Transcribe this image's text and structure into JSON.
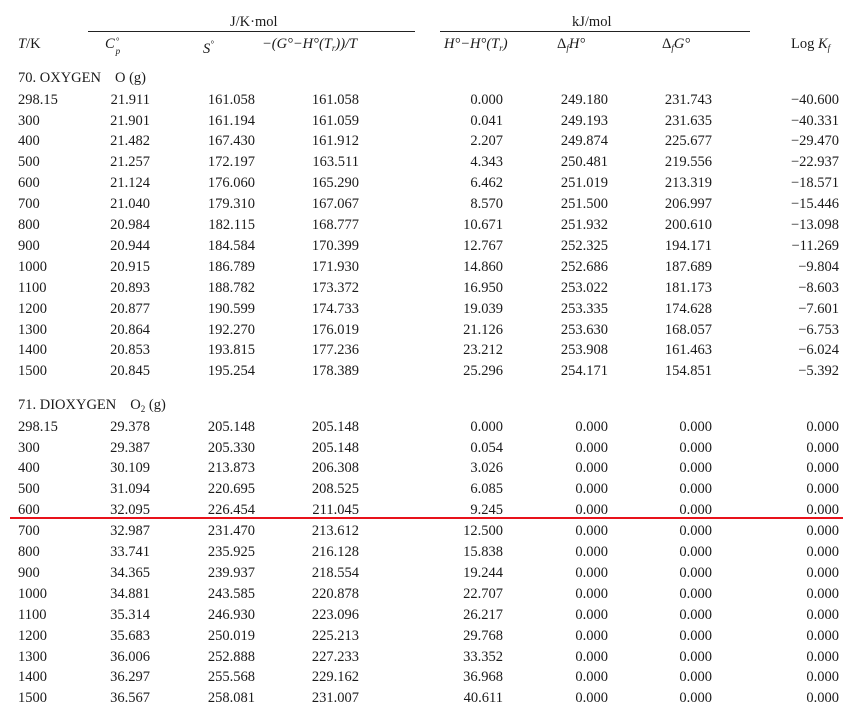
{
  "header": {
    "unit_left": "J/K·mol",
    "unit_right": "kJ/mol",
    "columns": {
      "t": {
        "main": "T",
        "rest": "/K"
      },
      "cp": {
        "main": "C",
        "sup": "°",
        "sub": "p"
      },
      "s": {
        "main": "S",
        "sup": "°"
      },
      "g": {
        "text": "−(G°−H°(T",
        "sub": "r",
        "rest": "))/T"
      },
      "h": {
        "text": "H°−H°(T",
        "sub": "r",
        "rest": ")"
      },
      "dfh": {
        "pre": "Δ",
        "sub": "f",
        "rest": "H°"
      },
      "dfg": {
        "pre": "Δ",
        "sub": "f",
        "rest": "G°"
      },
      "logk": {
        "pre": "Log ",
        "main": "K",
        "sub": "f"
      }
    }
  },
  "sections": [
    {
      "title": "70. OXYGEN",
      "formula": {
        "base": "O",
        "sub": "",
        "phase": " (g)"
      },
      "rows": [
        [
          "298.15",
          "21.911",
          "161.058",
          "161.058",
          "0.000",
          "249.180",
          "231.743",
          "−40.600"
        ],
        [
          "300",
          "21.901",
          "161.194",
          "161.059",
          "0.041",
          "249.193",
          "231.635",
          "−40.331"
        ],
        [
          "400",
          "21.482",
          "167.430",
          "161.912",
          "2.207",
          "249.874",
          "225.677",
          "−29.470"
        ],
        [
          "500",
          "21.257",
          "172.197",
          "163.511",
          "4.343",
          "250.481",
          "219.556",
          "−22.937"
        ],
        [
          "600",
          "21.124",
          "176.060",
          "165.290",
          "6.462",
          "251.019",
          "213.319",
          "−18.571"
        ],
        [
          "700",
          "21.040",
          "179.310",
          "167.067",
          "8.570",
          "251.500",
          "206.997",
          "−15.446"
        ],
        [
          "800",
          "20.984",
          "182.115",
          "168.777",
          "10.671",
          "251.932",
          "200.610",
          "−13.098"
        ],
        [
          "900",
          "20.944",
          "184.584",
          "170.399",
          "12.767",
          "252.325",
          "194.171",
          "−11.269"
        ],
        [
          "1000",
          "20.915",
          "186.789",
          "171.930",
          "14.860",
          "252.686",
          "187.689",
          "−9.804"
        ],
        [
          "1100",
          "20.893",
          "188.782",
          "173.372",
          "16.950",
          "253.022",
          "181.173",
          "−8.603"
        ],
        [
          "1200",
          "20.877",
          "190.599",
          "174.733",
          "19.039",
          "253.335",
          "174.628",
          "−7.601"
        ],
        [
          "1300",
          "20.864",
          "192.270",
          "176.019",
          "21.126",
          "253.630",
          "168.057",
          "−6.753"
        ],
        [
          "1400",
          "20.853",
          "193.815",
          "177.236",
          "23.212",
          "253.908",
          "161.463",
          "−6.024"
        ],
        [
          "1500",
          "20.845",
          "195.254",
          "178.389",
          "25.296",
          "254.171",
          "154.851",
          "−5.392"
        ]
      ]
    },
    {
      "title": "71. DIOXYGEN",
      "formula": {
        "base": "O",
        "sub": "2",
        "phase": " (g)"
      },
      "rows": [
        [
          "298.15",
          "29.378",
          "205.148",
          "205.148",
          "0.000",
          "0.000",
          "0.000",
          "0.000"
        ],
        [
          "300",
          "29.387",
          "205.330",
          "205.148",
          "0.054",
          "0.000",
          "0.000",
          "0.000"
        ],
        [
          "400",
          "30.109",
          "213.873",
          "206.308",
          "3.026",
          "0.000",
          "0.000",
          "0.000"
        ],
        [
          "500",
          "31.094",
          "220.695",
          "208.525",
          "6.085",
          "0.000",
          "0.000",
          "0.000"
        ],
        [
          "600",
          "32.095",
          "226.454",
          "211.045",
          "9.245",
          "0.000",
          "0.000",
          "0.000"
        ],
        [
          "700",
          "32.987",
          "231.470",
          "213.612",
          "12.500",
          "0.000",
          "0.000",
          "0.000"
        ],
        [
          "800",
          "33.741",
          "235.925",
          "216.128",
          "15.838",
          "0.000",
          "0.000",
          "0.000"
        ],
        [
          "900",
          "34.365",
          "239.937",
          "218.554",
          "19.244",
          "0.000",
          "0.000",
          "0.000"
        ],
        [
          "1000",
          "34.881",
          "243.585",
          "220.878",
          "22.707",
          "0.000",
          "0.000",
          "0.000"
        ],
        [
          "1100",
          "35.314",
          "246.930",
          "223.096",
          "26.217",
          "0.000",
          "0.000",
          "0.000"
        ],
        [
          "1200",
          "35.683",
          "250.019",
          "225.213",
          "29.768",
          "0.000",
          "0.000",
          "0.000"
        ],
        [
          "1300",
          "36.006",
          "252.888",
          "227.233",
          "33.352",
          "0.000",
          "0.000",
          "0.000"
        ],
        [
          "1400",
          "36.297",
          "255.568",
          "229.162",
          "36.968",
          "0.000",
          "0.000",
          "0.000"
        ],
        [
          "1500",
          "36.567",
          "258.081",
          "231.007",
          "40.611",
          "0.000",
          "0.000",
          "0.000"
        ]
      ]
    }
  ],
  "annotation": {
    "color": "#e8121b"
  }
}
